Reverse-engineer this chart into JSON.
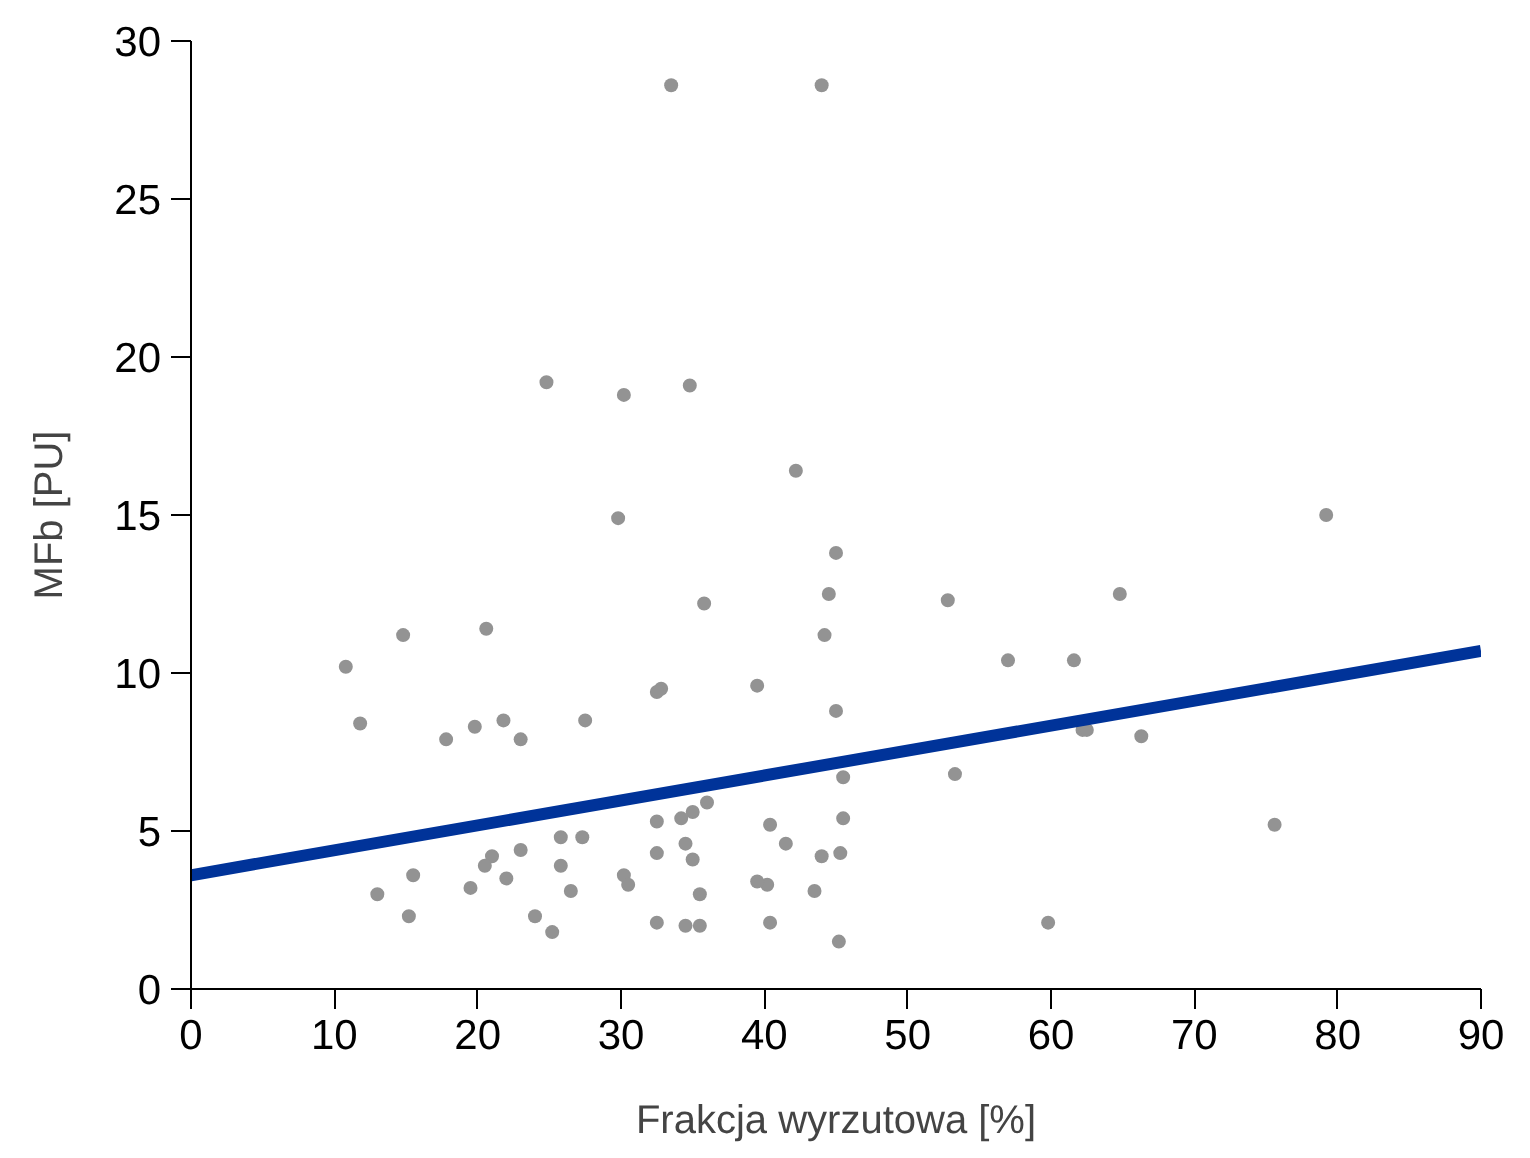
{
  "chart_data": {
    "type": "scatter",
    "xlabel": "Frakcja wyrzutowa [%]",
    "ylabel": "MFb [PU]",
    "xlim": [
      0,
      90
    ],
    "ylim": [
      0,
      30
    ],
    "xticks": [
      0,
      10,
      20,
      30,
      40,
      50,
      60,
      70,
      80,
      90
    ],
    "yticks": [
      0,
      5,
      10,
      15,
      20,
      25,
      30
    ],
    "grid": false,
    "series": [
      {
        "marker": "circle",
        "color": "#939393",
        "x": [
          33.5,
          44,
          24.8,
          30.2,
          34.8,
          42.2,
          29.8,
          79.2,
          45,
          44.5,
          64.8,
          52.8,
          35.8,
          44.2,
          14.8,
          20.6,
          10.8,
          57,
          61.6,
          32.8,
          32.5,
          39.5,
          11.8,
          21.8,
          27.5,
          19.8,
          17.8,
          23,
          45,
          62.2,
          62.5,
          66.3,
          53.3,
          45.5,
          75.6,
          45.5,
          36,
          35,
          34.2,
          32.5,
          40.4,
          41.5,
          44,
          45.3,
          40.2,
          39.5,
          43.5,
          30.2,
          30.5,
          32.5,
          34.5,
          35,
          35.5,
          27.3,
          25.8,
          25.8,
          26.5,
          23,
          21,
          20.5,
          22,
          19.5,
          15.5,
          13,
          15.2,
          24,
          25.2,
          32.5,
          34.5,
          35.5,
          40.4,
          45.2,
          59.8
        ],
        "values": [
          28.6,
          28.6,
          19.2,
          18.8,
          19.1,
          16.4,
          14.9,
          15.0,
          13.8,
          12.5,
          12.5,
          12.3,
          12.2,
          11.2,
          11.2,
          11.4,
          10.2,
          10.4,
          10.4,
          9.5,
          9.4,
          9.6,
          8.4,
          8.5,
          8.5,
          8.3,
          7.9,
          7.9,
          8.8,
          8.2,
          8.2,
          8.0,
          6.8,
          6.7,
          5.2,
          5.4,
          5.9,
          5.6,
          5.4,
          5.3,
          5.2,
          4.6,
          4.2,
          4.3,
          3.3,
          3.4,
          3.1,
          3.6,
          3.3,
          4.3,
          4.6,
          4.1,
          3.0,
          4.8,
          4.8,
          3.9,
          3.1,
          4.4,
          4.2,
          3.9,
          3.5,
          3.2,
          3.6,
          3.0,
          2.3,
          2.3,
          1.8,
          2.1,
          2.0,
          2.0,
          2.1,
          1.5,
          2.1
        ]
      },
      {
        "type": "line",
        "marker": "none",
        "color": "#003399",
        "x": [
          0,
          90
        ],
        "values": [
          3.6,
          10.7
        ]
      }
    ]
  }
}
